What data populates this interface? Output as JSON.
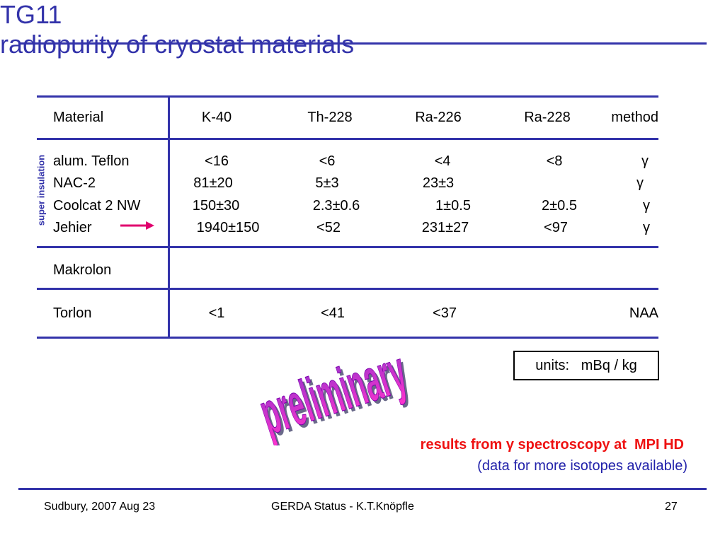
{
  "title": {
    "left": "TG11",
    "right": "radiopurity of cryostat materials"
  },
  "table": {
    "headers": [
      "Material",
      "K-40",
      "Th-228",
      "Ra-226",
      "Ra-228",
      "method"
    ],
    "group_label": "super insulation",
    "rows": [
      [
        "alum. Teflon",
        "<16",
        "<6",
        "<4",
        "<8",
        "γ"
      ],
      [
        "NAC-2",
        "81±20",
        "5±3",
        "23±3",
        "",
        "γ"
      ],
      [
        "Coolcat 2 NW",
        "150±30",
        "2.3±0.6",
        "1±0.5",
        "2±0.5",
        "γ"
      ],
      [
        "Jehier",
        "1940±150",
        "<52",
        "231±27",
        "<97",
        "γ"
      ],
      [
        "Makrolon",
        "",
        "",
        "",
        "",
        ""
      ],
      [
        "Torlon",
        "<1",
        "<41",
        "<37",
        "",
        "NAA"
      ]
    ]
  },
  "units": "units:   mBq / kg",
  "stamp": "preliminary",
  "results": {
    "text": "results from γ spectroscopy at  ",
    "lab": "MPI HD",
    "more": "(data for more isotopes available)"
  },
  "footer": {
    "left": "Sudbury, 2007 Aug 23",
    "center": "GERDA  Status - K.T.Knöpfle",
    "page": "27"
  },
  "colors": {
    "accent": "#3333aa",
    "highlight": "#ee1111",
    "arrow": "#e0006e",
    "stamp": "#cc00cc"
  }
}
